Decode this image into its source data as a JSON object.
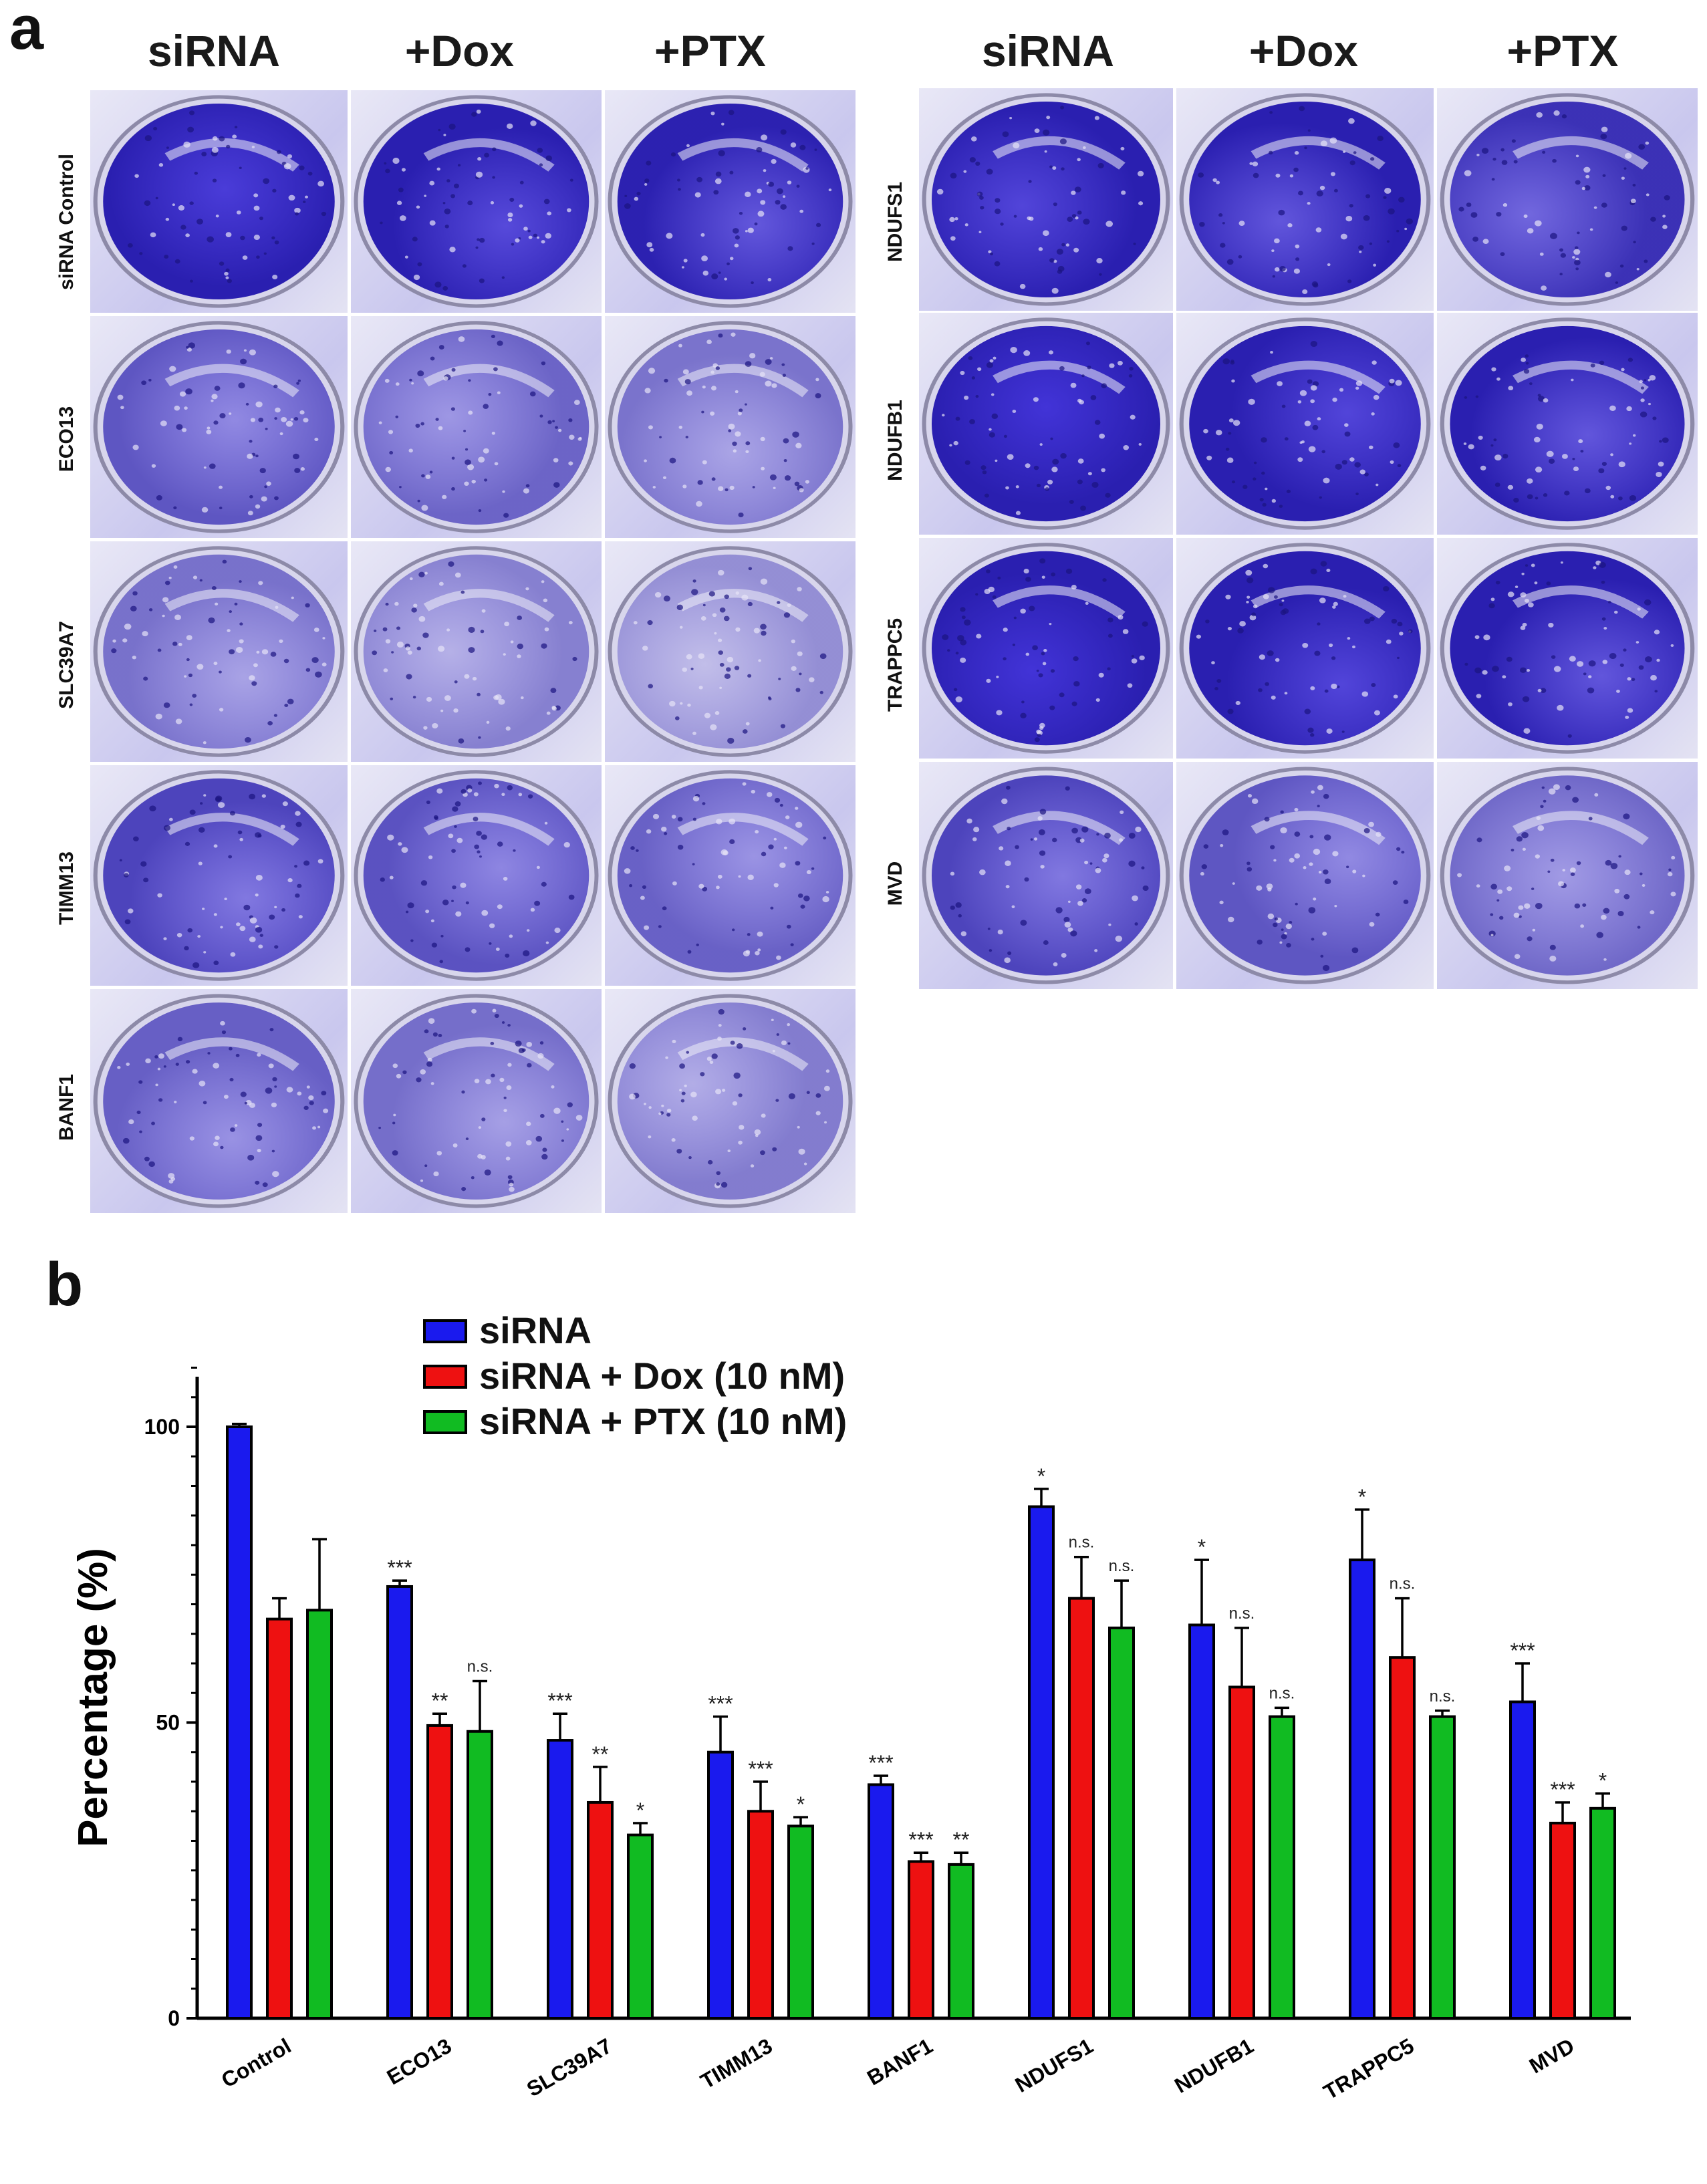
{
  "panel_a": {
    "label": "a",
    "left_block": {
      "columns": [
        "siRNA",
        "+Dox",
        "+PTX"
      ],
      "rows": [
        "siRNA Control",
        "ECO13",
        "SLC39A7",
        "TIMM13",
        "BANF1"
      ]
    },
    "right_block": {
      "columns": [
        "siRNA",
        "+Dox",
        "+PTX"
      ],
      "rows": [
        "NDUFS1",
        "NDUFB1",
        "TRAPPC5",
        "MVD"
      ]
    },
    "stain_color": "#3a2bd6"
  },
  "panel_b": {
    "label": "b"
  },
  "chart_data": {
    "type": "bar",
    "title": "",
    "xlabel": "",
    "ylabel": "Percentage (%)",
    "ylim": [
      0,
      110
    ],
    "yticks": [
      "0",
      "50",
      "100"
    ],
    "categories": [
      "Control",
      "ECO13",
      "SLC39A7",
      "TIMM13",
      "BANF1",
      "NDUFS1",
      "NDUFB1",
      "TRAPPC5",
      "MVD"
    ],
    "series": [
      {
        "name": "siRNA",
        "color": "#1a1aee",
        "values": [
          100,
          73,
          47,
          45,
          39.5,
          86.5,
          66.5,
          77.5,
          53.5
        ],
        "errors": [
          0.5,
          1,
          4.5,
          6,
          1.5,
          3,
          11,
          8.5,
          6.5
        ],
        "sig": [
          "",
          "***",
          "***",
          "***",
          "***",
          "*",
          "*",
          "*",
          "***"
        ]
      },
      {
        "name": "siRNA + Dox (10 nM)",
        "color": "#ee1111",
        "values": [
          67.5,
          49.5,
          36.5,
          35,
          26.5,
          71,
          56,
          61,
          33
        ],
        "errors": [
          3.5,
          2,
          6,
          5,
          1.5,
          7,
          10,
          10,
          3.5
        ],
        "sig": [
          "",
          "**",
          "**",
          "***",
          "***",
          "n.s.",
          "n.s.",
          "n.s.",
          "***"
        ]
      },
      {
        "name": "siRNA + PTX (10 nM)",
        "color": "#11bb22",
        "values": [
          69,
          48.5,
          31,
          32.5,
          26,
          66,
          51,
          51,
          35.5
        ],
        "errors": [
          12,
          8.5,
          2,
          1.5,
          2,
          8,
          1.5,
          1,
          2.5
        ],
        "sig": [
          "",
          "n.s.",
          "*",
          "*",
          "**",
          "n.s.",
          "n.s.",
          "n.s.",
          "*"
        ]
      }
    ],
    "legend": [
      "siRNA",
      "siRNA + Dox (10 nM)",
      "siRNA + PTX (10 nM)"
    ],
    "legend_placement": "top-center",
    "grid": false
  }
}
